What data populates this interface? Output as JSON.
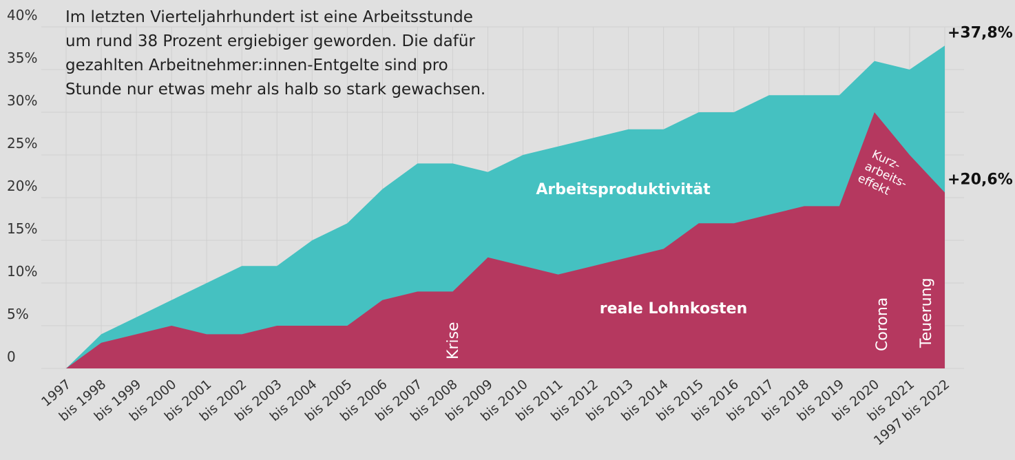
{
  "chart_data": {
    "type": "area",
    "description": [
      "Im letzten Vierteljahrhundert ist eine Arbeitsstunde",
      "um rund 38 Prozent ergiebiger geworden. Die dafür",
      "gezahlten Arbeitnehmer:innen-Entgelte sind pro",
      "Stunde nur etwas mehr als halb so stark gewachsen."
    ],
    "categories": [
      "1997",
      "bis 1998",
      "bis 1999",
      "bis 2000",
      "bis 2001",
      "bis 2002",
      "bis 2003",
      "bis 2004",
      "bis 2005",
      "bis 2006",
      "bis 2007",
      "bis 2008",
      "bis 2009",
      "bis 2010",
      "bis 2011",
      "bis 2012",
      "bis 2013",
      "bis 2014",
      "bis 2015",
      "bis 2016",
      "bis 2017",
      "bis 2018",
      "bis 2019",
      "bis 2020",
      "bis 2021",
      "1997 bis 2022"
    ],
    "series": [
      {
        "name": "Arbeitsproduktivität",
        "color": "#45c1c1",
        "end_label": "+37,8%",
        "values": [
          0,
          4,
          6,
          8,
          10,
          12,
          12,
          15,
          17,
          21,
          24,
          24,
          23,
          25,
          26,
          27,
          28,
          28,
          30,
          30,
          32,
          32,
          32,
          36,
          35,
          37.8
        ]
      },
      {
        "name": "reale Lohnkosten",
        "color": "#b5385f",
        "end_label": "+20,6%",
        "values": [
          0,
          3,
          4,
          5,
          4,
          4,
          5,
          5,
          5,
          8,
          9,
          9,
          13,
          12,
          11,
          12,
          13,
          14,
          17,
          17,
          18,
          19,
          19,
          30,
          25,
          20.6
        ]
      }
    ],
    "annotations": [
      "Krise",
      "Corona",
      "Teuerung",
      [
        "Kurz-",
        "arbeits-",
        "effekt"
      ]
    ],
    "ylim": [
      0,
      40
    ],
    "yticks": [
      0,
      {
        "value": 5,
        "label": "5%"
      },
      {
        "value": 10,
        "label": "10%"
      },
      {
        "value": 15,
        "label": "15%"
      },
      {
        "value": 20,
        "label": "20%"
      },
      {
        "value": 25,
        "label": "25%"
      },
      {
        "value": 30,
        "label": "30%"
      },
      {
        "value": 35,
        "label": "35%"
      },
      {
        "value": 40,
        "label": "40%"
      }
    ],
    "grid": true
  }
}
